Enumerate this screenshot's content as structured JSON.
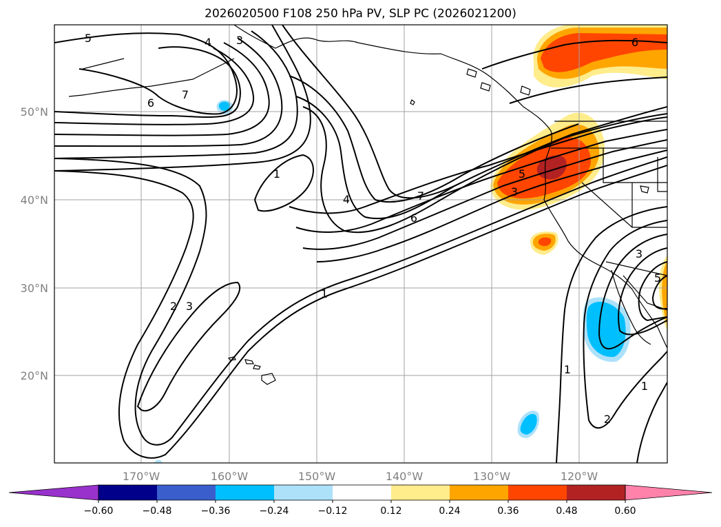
{
  "title": "2026020500 F108 250 hPa PV, SLP PC (2026021200)",
  "lat_labels": [
    "50°N",
    "40°N",
    "30°N",
    "20°N"
  ],
  "lon_labels": [
    "170°W",
    "160°W",
    "150°W",
    "140°W",
    "130°W",
    "120°W"
  ],
  "colorbar": {
    "colors": [
      "#9932CC",
      "#00008B",
      "#3A5FCD",
      "#00BFFF",
      "#ADE1FA",
      "#FFFFFF",
      "#FFEC8B",
      "#FFA500",
      "#FF4500",
      "#B22222",
      "#FF82AB"
    ],
    "ticks": [
      "−0.60",
      "−0.48",
      "−0.36",
      "−0.24",
      "−0.12",
      "0.12",
      "0.24",
      "0.36",
      "0.48",
      "0.60"
    ]
  },
  "contour_labels": [
    "5",
    "4",
    "3",
    "7",
    "6",
    "1",
    "4",
    "2",
    "3",
    "7",
    "6",
    "1",
    "6",
    "5",
    "3",
    "3",
    "5",
    "1",
    "2",
    "1"
  ]
}
